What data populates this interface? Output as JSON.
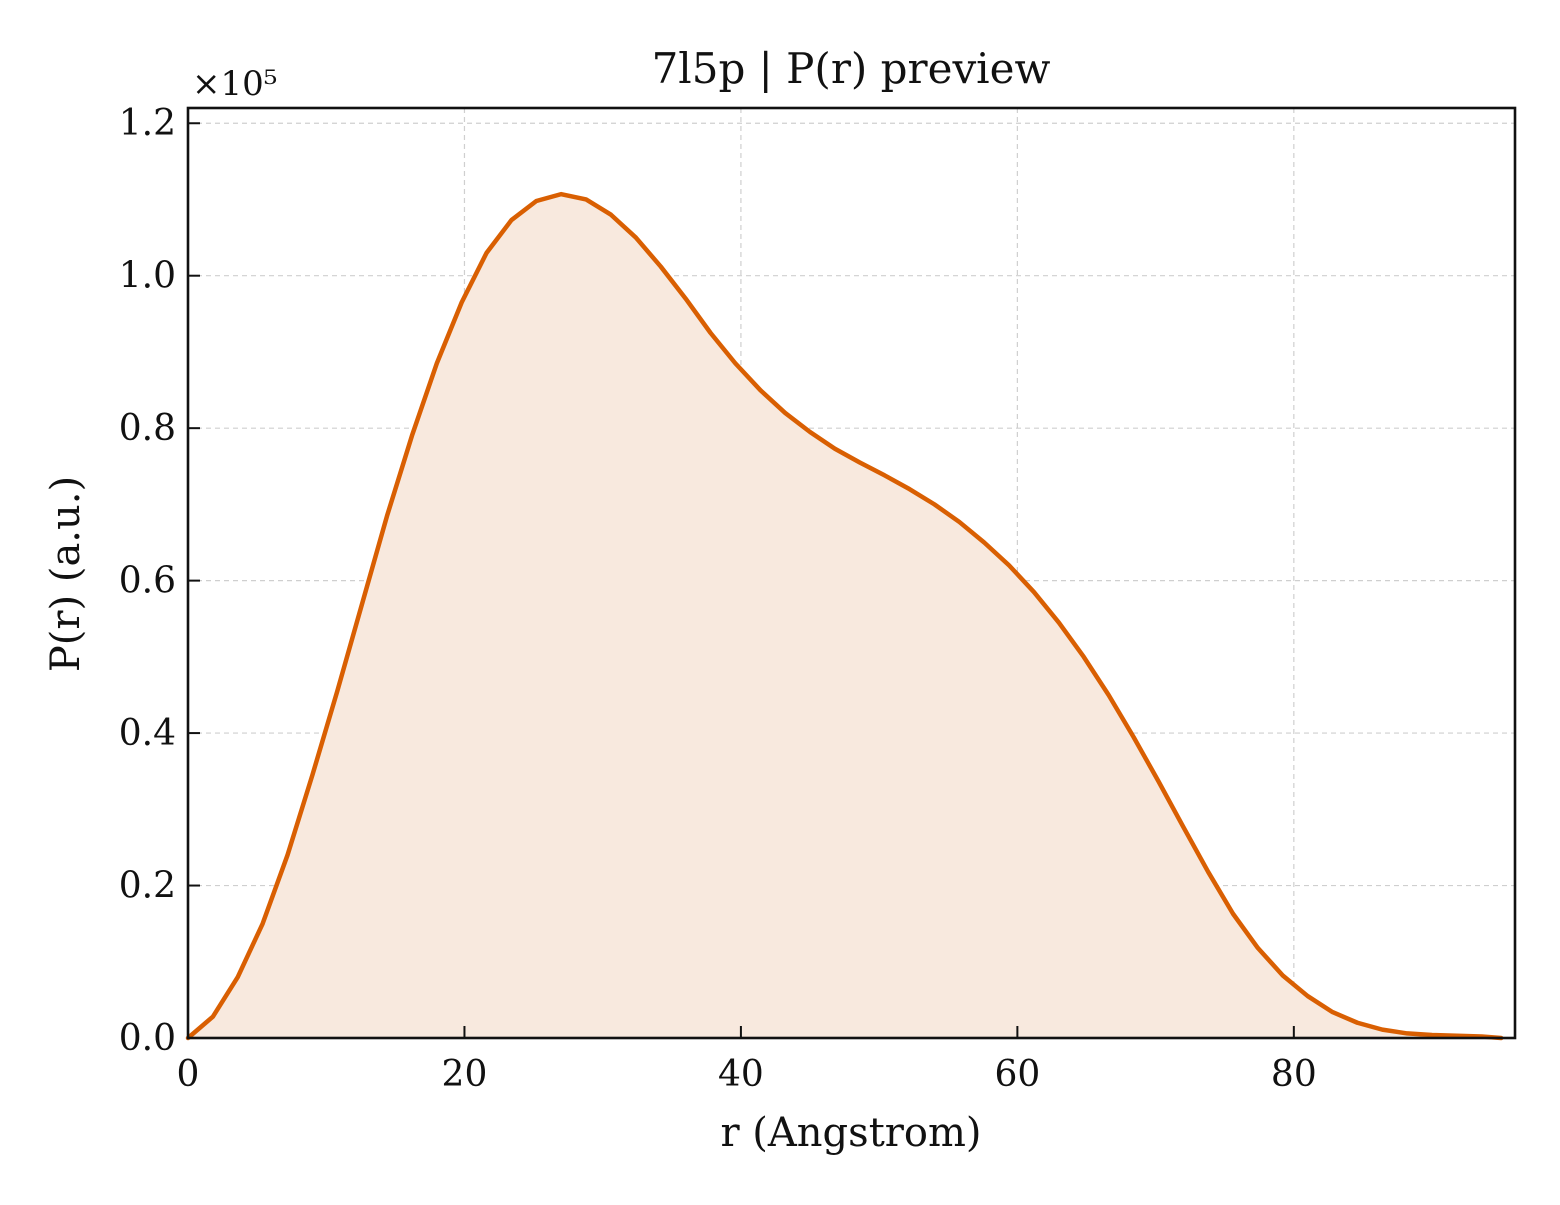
{
  "chart_data": {
    "type": "area",
    "title": "7l5p | P(r) preview",
    "xlabel": "r (Angstrom)",
    "ylabel": "P(r) (a.u.)",
    "y_multiplier": "×10⁵",
    "xlim": [
      0,
      96
    ],
    "ylim": [
      0,
      1.22
    ],
    "xticks": [
      0,
      20,
      40,
      60,
      80
    ],
    "xtick_labels": [
      "0",
      "20",
      "40",
      "60",
      "80"
    ],
    "yticks": [
      0.0,
      0.2,
      0.4,
      0.6,
      0.8,
      1.0,
      1.2
    ],
    "ytick_labels": [
      "0.0",
      "0.2",
      "0.4",
      "0.6",
      "0.8",
      "1.0",
      "1.2"
    ],
    "grid": true,
    "colors": {
      "line": "#d95f02",
      "fill": "#f8e9de",
      "grid": "#cfcfcf",
      "axes": "#111111"
    },
    "series": [
      {
        "x": [
          0.0,
          1.8,
          3.6,
          5.4,
          7.2,
          9.0,
          10.8,
          12.6,
          14.4,
          16.2,
          18.0,
          19.8,
          21.6,
          23.4,
          25.2,
          27.0,
          28.8,
          30.6,
          32.4,
          34.2,
          36.0,
          37.8,
          39.6,
          41.4,
          43.2,
          45.0,
          46.8,
          48.6,
          50.4,
          52.2,
          54.0,
          55.8,
          57.6,
          59.4,
          61.2,
          63.0,
          64.8,
          66.6,
          68.4,
          70.2,
          72.0,
          73.8,
          75.6,
          77.4,
          79.2,
          81.0,
          82.8,
          84.6,
          86.4,
          88.2,
          90.0,
          91.8,
          93.6,
          95.0
        ],
        "y": [
          0.0,
          0.028,
          0.08,
          0.15,
          0.24,
          0.345,
          0.455,
          0.57,
          0.685,
          0.79,
          0.885,
          0.965,
          1.03,
          1.073,
          1.098,
          1.107,
          1.1,
          1.08,
          1.05,
          1.012,
          0.97,
          0.925,
          0.885,
          0.85,
          0.82,
          0.795,
          0.773,
          0.755,
          0.738,
          0.72,
          0.7,
          0.677,
          0.65,
          0.62,
          0.585,
          0.545,
          0.5,
          0.45,
          0.395,
          0.337,
          0.277,
          0.218,
          0.163,
          0.118,
          0.082,
          0.055,
          0.034,
          0.02,
          0.011,
          0.006,
          0.004,
          0.003,
          0.002,
          0.0
        ]
      }
    ]
  }
}
